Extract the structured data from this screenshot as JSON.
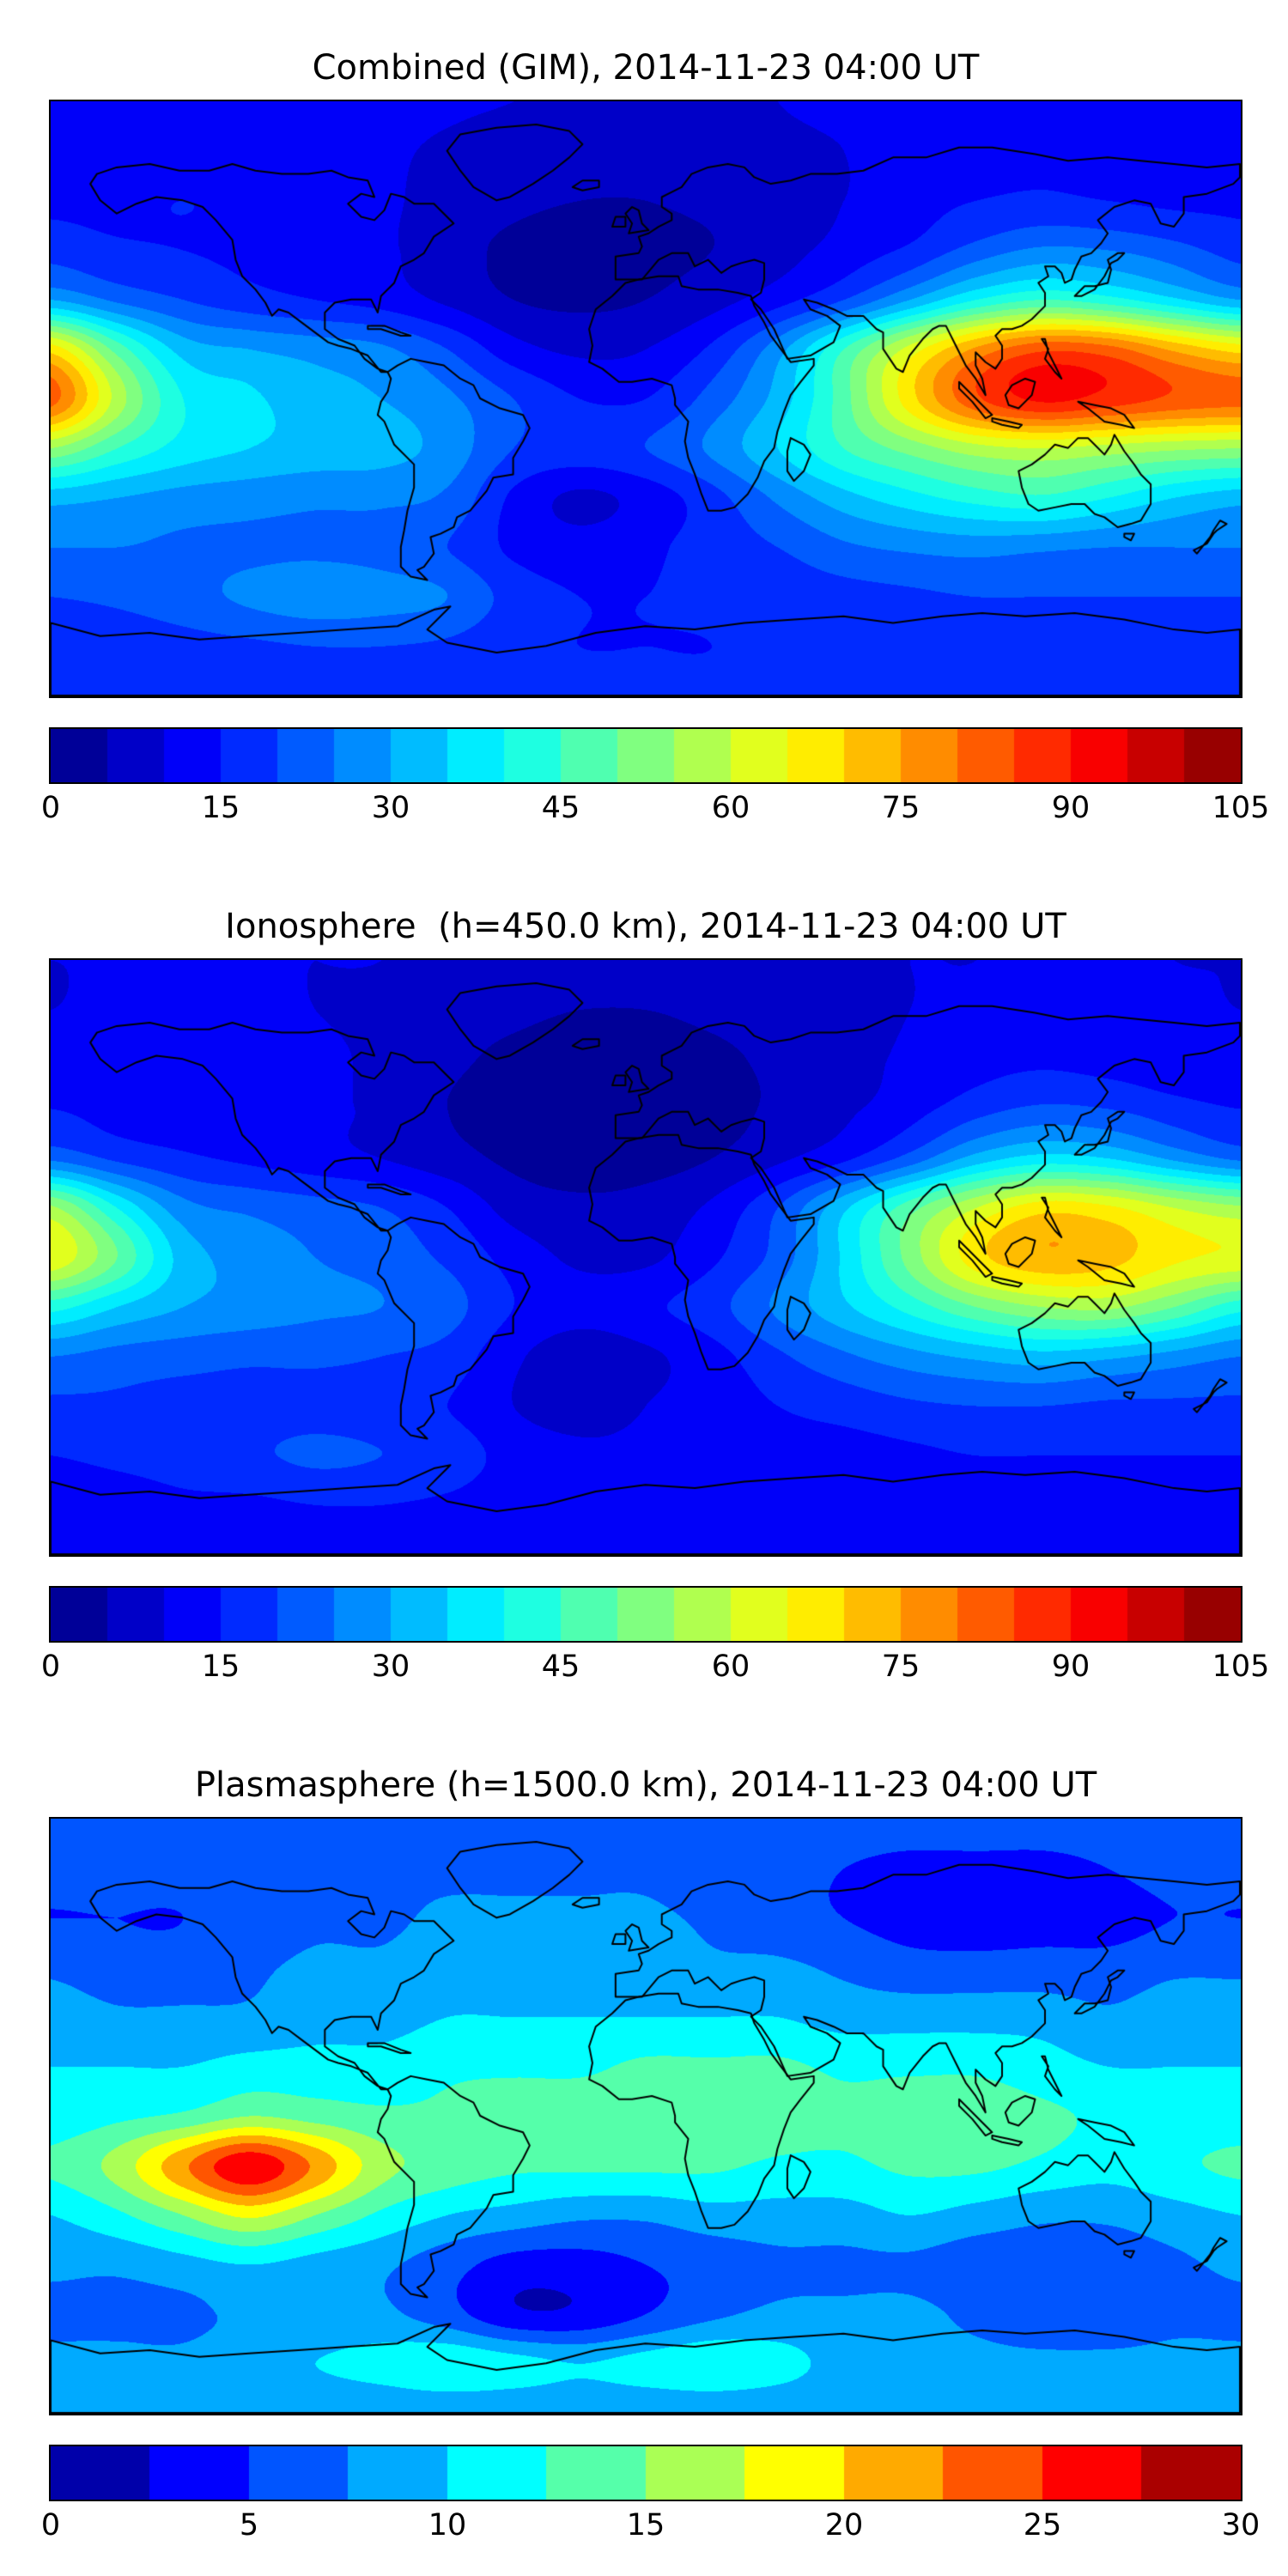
{
  "colors": {
    "background": "#ffffff",
    "coastline": "#000000",
    "text": "#000000"
  },
  "chart_data": [
    {
      "type": "heatmap",
      "title": "Combined (GIM), 2014-11-23 04:00 UT",
      "colormap": "jet",
      "projection": "equirectangular",
      "grid": {
        "lon": [
          -180,
          -160,
          -140,
          -120,
          -100,
          -80,
          -60,
          -40,
          -20,
          0,
          20,
          40,
          60,
          80,
          100,
          120,
          140,
          160,
          180
        ],
        "lat": [
          90,
          75,
          60,
          45,
          30,
          15,
          0,
          -15,
          -30,
          -45,
          -60,
          -75,
          -90
        ]
      },
      "values": [
        [
          13,
          13,
          13,
          12,
          12,
          12,
          11,
          10,
          9,
          9,
          9,
          10,
          11,
          12,
          13,
          13,
          13,
          13,
          13
        ],
        [
          12,
          13,
          13,
          13,
          12,
          11,
          9,
          7,
          7,
          7,
          8,
          9,
          10,
          12,
          13,
          14,
          13,
          13,
          12
        ],
        [
          14,
          14,
          15,
          14,
          13,
          11,
          8,
          6,
          5,
          5,
          6,
          8,
          10,
          13,
          15,
          16,
          15,
          14,
          14
        ],
        [
          18,
          16,
          15,
          14,
          13,
          11,
          7,
          4,
          3,
          4,
          5,
          8,
          12,
          16,
          22,
          26,
          25,
          22,
          18
        ],
        [
          30,
          24,
          20,
          17,
          15,
          13,
          9,
          5,
          4,
          5,
          8,
          13,
          20,
          30,
          40,
          45,
          42,
          36,
          30
        ],
        [
          68,
          48,
          33,
          30,
          28,
          26,
          20,
          12,
          9,
          10,
          16,
          28,
          45,
          62,
          76,
          84,
          82,
          74,
          68
        ],
        [
          82,
          58,
          40,
          36,
          32,
          30,
          26,
          20,
          15,
          15,
          22,
          32,
          48,
          68,
          84,
          91,
          88,
          84,
          82
        ],
        [
          55,
          45,
          38,
          35,
          33,
          32,
          28,
          20,
          18,
          20,
          26,
          35,
          45,
          52,
          58,
          60,
          58,
          56,
          55
        ],
        [
          32,
          30,
          28,
          27,
          26,
          26,
          24,
          14,
          9,
          12,
          18,
          26,
          33,
          38,
          42,
          44,
          40,
          35,
          32
        ],
        [
          25,
          25,
          24,
          24,
          24,
          23,
          20,
          14,
          12,
          14,
          17,
          20,
          24,
          26,
          27,
          26,
          25,
          25,
          25
        ],
        [
          20,
          21,
          23,
          26,
          28,
          27,
          25,
          18,
          15,
          15,
          16,
          17,
          18,
          19,
          20,
          20,
          20,
          20,
          20
        ],
        [
          17,
          17,
          18,
          19,
          20,
          20,
          19,
          16,
          15,
          15,
          15,
          16,
          16,
          17,
          17,
          17,
          17,
          17,
          17
        ],
        [
          16,
          16,
          16,
          16,
          16,
          16,
          16,
          16,
          16,
          16,
          16,
          16,
          16,
          16,
          16,
          16,
          16,
          16,
          16
        ]
      ],
      "levels": {
        "min": 0,
        "max": 105,
        "step": 5
      },
      "colorbar_ticks": [
        0,
        15,
        30,
        45,
        60,
        75,
        90,
        105
      ]
    },
    {
      "type": "heatmap",
      "title": "Ionosphere  (h=450.0 km), 2014-11-23 04:00 UT",
      "colormap": "jet",
      "projection": "equirectangular",
      "grid": {
        "lon": [
          -180,
          -160,
          -140,
          -120,
          -100,
          -80,
          -60,
          -40,
          -20,
          0,
          20,
          40,
          60,
          80,
          100,
          120,
          140,
          160,
          180
        ],
        "lat": [
          90,
          75,
          60,
          45,
          30,
          15,
          0,
          -15,
          -30,
          -45,
          -60,
          -75,
          -90
        ]
      },
      "values": [
        [
          10,
          10,
          10,
          10,
          10,
          10,
          9,
          8,
          8,
          8,
          8,
          8,
          9,
          10,
          10,
          11,
          11,
          10,
          10
        ],
        [
          10,
          11,
          11,
          11,
          10,
          9,
          7,
          6,
          5,
          5,
          6,
          7,
          8,
          10,
          11,
          12,
          11,
          11,
          10
        ],
        [
          12,
          12,
          12,
          12,
          11,
          9,
          6,
          4,
          3,
          3,
          4,
          6,
          8,
          11,
          13,
          14,
          13,
          12,
          12
        ],
        [
          15,
          13,
          12,
          12,
          11,
          9,
          5,
          3,
          2,
          2,
          3,
          6,
          9,
          13,
          18,
          21,
          20,
          17,
          15
        ],
        [
          24,
          19,
          16,
          14,
          12,
          10,
          7,
          4,
          3,
          3,
          5,
          9,
          14,
          22,
          32,
          37,
          35,
          29,
          24
        ],
        [
          56,
          40,
          27,
          24,
          22,
          20,
          15,
          8,
          6,
          7,
          11,
          20,
          34,
          48,
          60,
          68,
          66,
          60,
          56
        ],
        [
          64,
          50,
          33,
          28,
          25,
          23,
          19,
          13,
          9,
          9,
          14,
          22,
          36,
          52,
          68,
          74,
          72,
          66,
          64
        ],
        [
          42,
          35,
          30,
          28,
          26,
          25,
          22,
          15,
          12,
          14,
          18,
          26,
          34,
          42,
          50,
          55,
          56,
          50,
          42
        ],
        [
          25,
          23,
          22,
          21,
          21,
          20,
          18,
          11,
          7,
          9,
          13,
          19,
          24,
          28,
          31,
          33,
          31,
          28,
          25
        ],
        [
          19,
          19,
          18,
          18,
          18,
          17,
          15,
          10,
          8,
          10,
          12,
          15,
          17,
          19,
          20,
          20,
          19,
          19,
          19
        ],
        [
          15,
          16,
          17,
          19,
          21,
          20,
          18,
          13,
          11,
          11,
          12,
          13,
          13,
          14,
          15,
          15,
          15,
          15,
          15
        ],
        [
          13,
          13,
          14,
          14,
          15,
          15,
          14,
          12,
          11,
          11,
          11,
          12,
          12,
          13,
          13,
          13,
          13,
          13,
          13
        ],
        [
          12,
          12,
          12,
          12,
          12,
          12,
          12,
          12,
          12,
          12,
          12,
          12,
          12,
          12,
          12,
          12,
          12,
          12,
          12
        ]
      ],
      "levels": {
        "min": 0,
        "max": 105,
        "step": 5
      },
      "colorbar_ticks": [
        0,
        15,
        30,
        45,
        60,
        75,
        90,
        105
      ]
    },
    {
      "type": "heatmap",
      "title": "Plasmasphere (h=1500.0 km), 2014-11-23 04:00 UT",
      "colormap": "jet",
      "projection": "equirectangular",
      "grid": {
        "lon": [
          -180,
          -160,
          -140,
          -120,
          -100,
          -80,
          -60,
          -40,
          -20,
          0,
          20,
          40,
          60,
          80,
          100,
          120,
          140,
          160,
          180
        ],
        "lat": [
          90,
          75,
          60,
          45,
          30,
          15,
          0,
          -15,
          -30,
          -45,
          -60,
          -75,
          -90
        ]
      },
      "values": [
        [
          7,
          7,
          7,
          7,
          7,
          7,
          7,
          7,
          7,
          7,
          7,
          7,
          7,
          7,
          7,
          7,
          7,
          7,
          7
        ],
        [
          6,
          6,
          6,
          7,
          7,
          7,
          7,
          7,
          7,
          7,
          6,
          6,
          5,
          4,
          4,
          4,
          5,
          6,
          6
        ],
        [
          5,
          5,
          5,
          6,
          7,
          7,
          8,
          8,
          8,
          8,
          7,
          6,
          5,
          4,
          3.5,
          4,
          4,
          5,
          5
        ],
        [
          7,
          6,
          6,
          7,
          8,
          8,
          9,
          9,
          9,
          9,
          8,
          8,
          7,
          6,
          6,
          6,
          6,
          7,
          7
        ],
        [
          9,
          8,
          8,
          8,
          9,
          9,
          10,
          10,
          10,
          10,
          10,
          10,
          9,
          9,
          9,
          9,
          8,
          9,
          9
        ],
        [
          10,
          10,
          10,
          11,
          11,
          11,
          12,
          12,
          12,
          13,
          13,
          13,
          12,
          12,
          12,
          11,
          10,
          10,
          10
        ],
        [
          11,
          12,
          13,
          15,
          14,
          13,
          13,
          14,
          14,
          14,
          15,
          14,
          13,
          14,
          14,
          13,
          12,
          11,
          11
        ],
        [
          13,
          16,
          22,
          27,
          22,
          16,
          14,
          13,
          13,
          13,
          13,
          12,
          12,
          13,
          13,
          12,
          11,
          12,
          13
        ],
        [
          10,
          12,
          15,
          18,
          15,
          12,
          10,
          9,
          8,
          8,
          9,
          9,
          9,
          10,
          9,
          8,
          8,
          9,
          10
        ],
        [
          8,
          8,
          9,
          10,
          9,
          8,
          6,
          4,
          4,
          5,
          6,
          7,
          7,
          7,
          6,
          6,
          6,
          7,
          8
        ],
        [
          7,
          7,
          7,
          8,
          8,
          8,
          6,
          3,
          3,
          5,
          7,
          8,
          8,
          8,
          7,
          6,
          6,
          7,
          7
        ],
        [
          8,
          8,
          8,
          9,
          10,
          11,
          12,
          11,
          10,
          11,
          12,
          11,
          9,
          8,
          8,
          8,
          8,
          8,
          8
        ],
        [
          8,
          8,
          8,
          8,
          8,
          8,
          8,
          8,
          8,
          8,
          8,
          8,
          8,
          8,
          8,
          8,
          8,
          8,
          8
        ]
      ],
      "levels": {
        "min": 0,
        "max": 30,
        "step": 2.5
      },
      "colorbar_ticks": [
        0,
        5,
        10,
        15,
        20,
        25,
        30
      ]
    }
  ]
}
